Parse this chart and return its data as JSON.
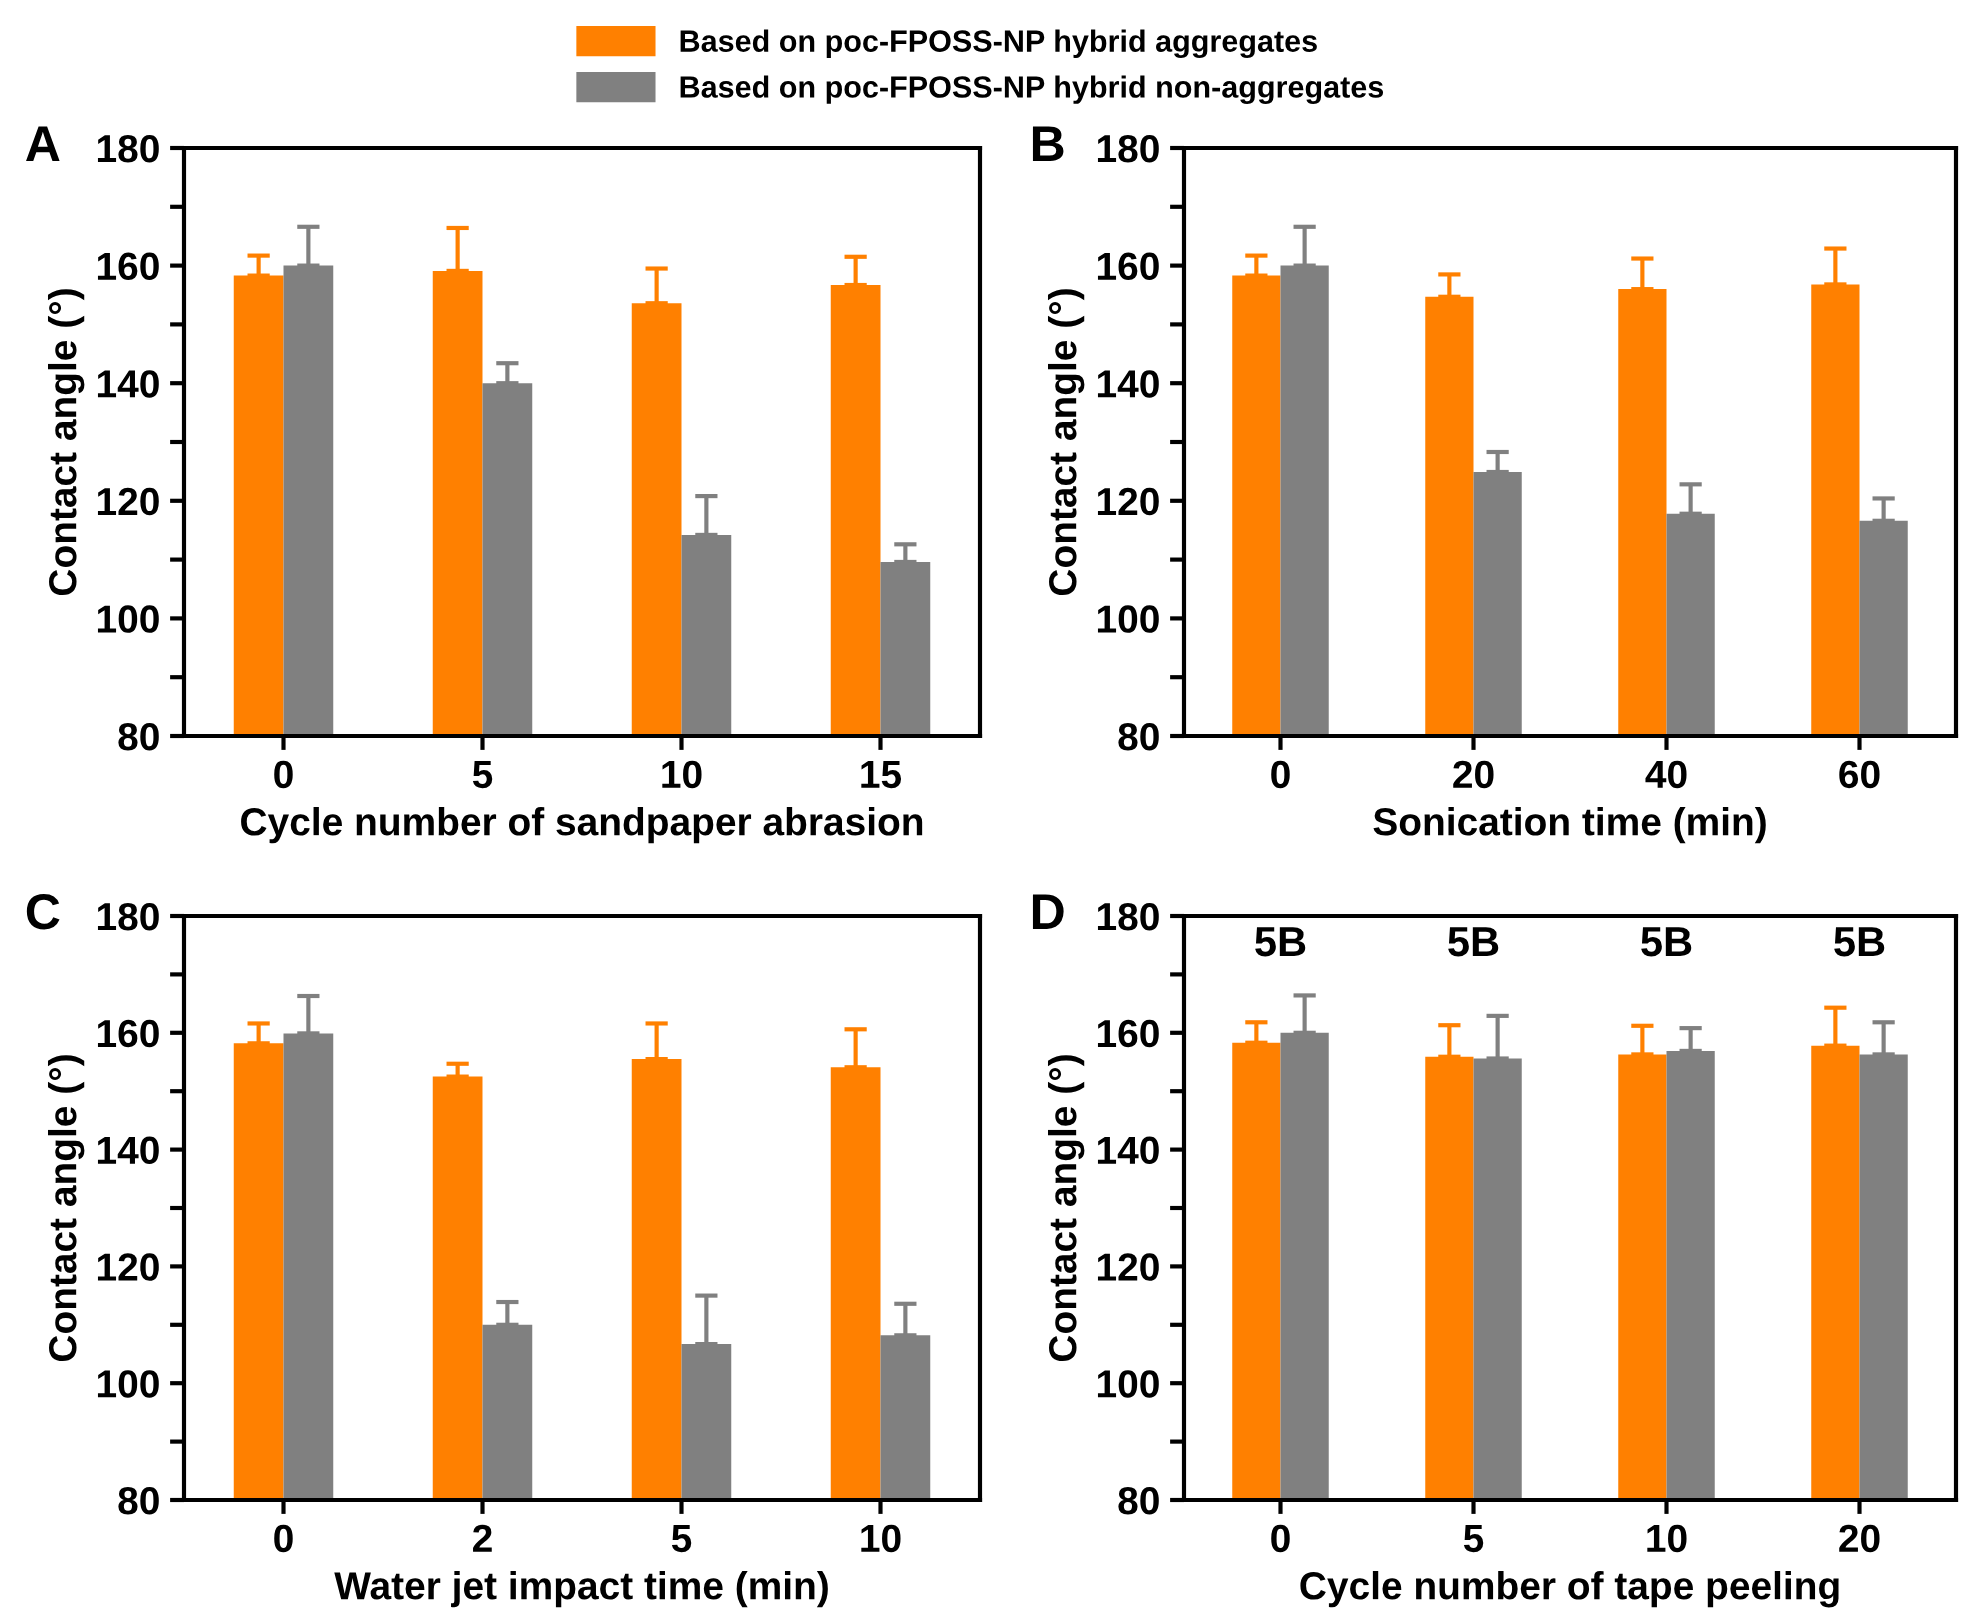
{
  "chart_data": [
    {
      "type": "bar",
      "title": "A",
      "xlabel": "Cycle number of sandpaper abrasion",
      "ylabel": "Contact angle (°)",
      "categories": [
        "0",
        "5",
        "10",
        "15"
      ],
      "ylim": [
        80,
        180
      ],
      "yticks": [
        80,
        {
          "value": 90,
          "label": null
        },
        100,
        {
          "value": 110,
          "label": null
        },
        120,
        {
          "value": 130,
          "label": null
        },
        140,
        {
          "value": 150,
          "label": null
        },
        160,
        {
          "value": 170,
          "label": null
        },
        180
      ],
      "legend": "top",
      "series": [
        {
          "name": "Based on poc-FPOSS-NP hybrid aggregates",
          "color": "#ff8000",
          "values": [
            158.3,
            159.1,
            153.6,
            156.7
          ],
          "errors": [
            [
              158.3,
              161.7
            ],
            [
              159.1,
              166.4
            ],
            [
              153.6,
              159.5
            ],
            [
              156.7,
              161.5
            ]
          ]
        },
        {
          "name": "Based on poc-FPOSS-NP hybrid non-aggregates",
          "color": "#808080",
          "values": [
            160.0,
            140.0,
            114.2,
            109.6
          ],
          "errors": [
            [
              160.0,
              166.6
            ],
            [
              140.0,
              143.4
            ],
            [
              114.2,
              120.8
            ],
            [
              109.6,
              112.6
            ]
          ]
        }
      ]
    },
    {
      "type": "bar",
      "title": "B",
      "xlabel": "Sonication time (min)",
      "ylabel": "Contact angle (°)",
      "categories": [
        "0",
        "20",
        "40",
        "60"
      ],
      "ylim": [
        80,
        180
      ],
      "yticks": [
        80,
        {
          "value": 90,
          "label": null
        },
        100,
        {
          "value": 110,
          "label": null
        },
        120,
        {
          "value": 130,
          "label": null
        },
        140,
        {
          "value": 150,
          "label": null
        },
        160,
        {
          "value": 170,
          "label": null
        },
        180
      ],
      "series": [
        {
          "color": "#ff8000",
          "values": [
            158.3,
            154.7,
            156.0,
            156.8
          ],
          "errors": [
            [
              158.3,
              161.7
            ],
            [
              154.7,
              158.5
            ],
            [
              156.0,
              161.2
            ],
            [
              156.8,
              162.9
            ]
          ]
        },
        {
          "color": "#808080",
          "values": [
            160.0,
            124.9,
            117.8,
            116.6
          ],
          "errors": [
            [
              160.0,
              166.6
            ],
            [
              124.9,
              128.3
            ],
            [
              117.8,
              122.8
            ],
            [
              116.6,
              120.4
            ]
          ]
        }
      ]
    },
    {
      "type": "bar",
      "title": "C",
      "xlabel": "Water jet impact time (min)",
      "ylabel": "Contact angle (°)",
      "categories": [
        "0",
        "2",
        "5",
        "10"
      ],
      "ylim": [
        80,
        180
      ],
      "yticks": [
        80,
        {
          "value": 90,
          "label": null
        },
        100,
        {
          "value": 110,
          "label": null
        },
        120,
        {
          "value": 130,
          "label": null
        },
        140,
        {
          "value": 150,
          "label": null
        },
        160,
        {
          "value": 170,
          "label": null
        },
        180
      ],
      "series": [
        {
          "color": "#ff8000",
          "values": [
            158.2,
            152.5,
            155.5,
            154.1
          ],
          "errors": [
            [
              158.2,
              161.6
            ],
            [
              152.5,
              154.7
            ],
            [
              155.5,
              161.6
            ],
            [
              154.1,
              160.6
            ]
          ]
        },
        {
          "color": "#808080",
          "values": [
            159.9,
            110.0,
            106.7,
            108.2
          ],
          "errors": [
            [
              159.9,
              166.3
            ],
            [
              110.0,
              113.9
            ],
            [
              106.7,
              115.0
            ],
            [
              108.2,
              113.6
            ]
          ]
        }
      ]
    },
    {
      "type": "bar",
      "title": "D",
      "xlabel": "Cycle number of tape peeling",
      "ylabel": "Contact angle (°)",
      "categories": [
        "0",
        "5",
        "10",
        "20"
      ],
      "ylim": [
        80,
        180
      ],
      "yticks": [
        80,
        {
          "value": 90,
          "label": null
        },
        100,
        {
          "value": 110,
          "label": null
        },
        120,
        {
          "value": 130,
          "label": null
        },
        140,
        {
          "value": 150,
          "label": null
        },
        160,
        {
          "value": 170,
          "label": null
        },
        180
      ],
      "annotations": [
        "5B",
        "5B",
        "5B",
        "5B"
      ],
      "series": [
        {
          "color": "#ff8000",
          "values": [
            158.3,
            155.9,
            156.3,
            157.8
          ],
          "errors": [
            [
              158.3,
              161.8
            ],
            [
              155.9,
              161.3
            ],
            [
              156.3,
              161.2
            ],
            [
              157.8,
              164.3
            ]
          ]
        },
        {
          "color": "#808080",
          "values": [
            160.0,
            155.6,
            156.9,
            156.3
          ],
          "errors": [
            [
              160.0,
              166.4
            ],
            [
              155.6,
              162.9
            ],
            [
              156.9,
              160.8
            ],
            [
              156.3,
              161.8
            ]
          ]
        }
      ]
    }
  ]
}
